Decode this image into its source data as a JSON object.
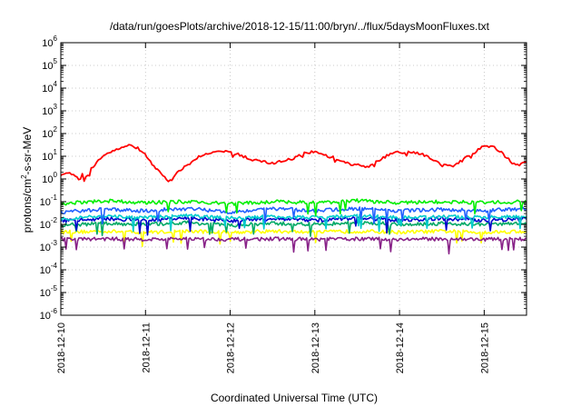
{
  "chart_data": {
    "type": "line",
    "title": "/data/run/goesPlots/archive/2018-12-15/11:00/bryn/../flux/5daysMoonFluxes.txt",
    "xlabel": "Coordinated Universal Time (UTC)",
    "ylabel": "protons/cm²-s-sr-MeV",
    "ylabel_parts": {
      "base": "protons/cm",
      "sup": "2",
      "rest": "-s-sr-MeV"
    },
    "y_scale": "log",
    "ylim": [
      1e-06,
      1000000.0
    ],
    "y_ticks": [
      {
        "exp": -6,
        "base": "10",
        "sup": "-6"
      },
      {
        "exp": -5,
        "base": "10",
        "sup": "-5"
      },
      {
        "exp": -4,
        "base": "10",
        "sup": "-4"
      },
      {
        "exp": -3,
        "base": "10",
        "sup": "-3"
      },
      {
        "exp": -2,
        "base": "10",
        "sup": "-2"
      },
      {
        "exp": -1,
        "base": "10",
        "sup": "-1"
      },
      {
        "exp": 0,
        "base": "10",
        "sup": "0"
      },
      {
        "exp": 1,
        "base": "10",
        "sup": "1"
      },
      {
        "exp": 2,
        "base": "10",
        "sup": "2"
      },
      {
        "exp": 3,
        "base": "10",
        "sup": "3"
      },
      {
        "exp": 4,
        "base": "10",
        "sup": "4"
      },
      {
        "exp": 5,
        "base": "10",
        "sup": "5"
      },
      {
        "exp": 6,
        "base": "10",
        "sup": "6"
      }
    ],
    "xlim": [
      "2018-12-10",
      "2018-12-15T12:00"
    ],
    "x_ticks": [
      "2018-12-10",
      "2018-12-11",
      "2018-12-12",
      "2018-12-13",
      "2018-12-14",
      "2018-12-15"
    ],
    "grid": true,
    "series": [
      {
        "color": "#ff0000",
        "x": [
          "2018-12-10T00:00",
          "2018-12-10T02:00",
          "2018-12-10T04:00",
          "2018-12-10T05:30",
          "2018-12-10T06:00",
          "2018-12-10T06:40",
          "2018-12-10T08:00",
          "2018-12-10T09:00",
          "2018-12-10T12:00",
          "2018-12-10T15:00",
          "2018-12-10T18:00",
          "2018-12-10T20:00",
          "2018-12-10T22:00",
          "2018-12-11T00:00",
          "2018-12-11T02:00",
          "2018-12-11T04:00",
          "2018-12-11T06:00",
          "2018-12-11T07:00",
          "2018-12-11T09:00",
          "2018-12-11T12:00",
          "2018-12-11T15:00",
          "2018-12-11T18:00",
          "2018-12-11T21:00",
          "2018-12-12T00:00",
          "2018-12-12T03:00",
          "2018-12-12T06:00",
          "2018-12-12T09:00",
          "2018-12-12T12:00",
          "2018-12-12T15:00",
          "2018-12-12T18:00",
          "2018-12-12T21:00",
          "2018-12-13T00:00",
          "2018-12-13T03:00",
          "2018-12-13T06:00",
          "2018-12-13T09:00",
          "2018-12-13T12:00",
          "2018-12-13T15:00",
          "2018-12-13T18:00",
          "2018-12-13T21:00",
          "2018-12-14T00:00",
          "2018-12-14T03:00",
          "2018-12-14T06:00",
          "2018-12-14T09:00",
          "2018-12-14T12:00",
          "2018-12-14T15:00",
          "2018-12-14T18:00",
          "2018-12-14T21:00",
          "2018-12-15T00:00",
          "2018-12-15T03:00",
          "2018-12-15T06:00",
          "2018-12-15T08:00",
          "2018-12-15T10:00",
          "2018-12-15T12:00"
        ],
        "values": [
          1.3,
          1.8,
          1.4,
          0.9,
          2.0,
          0.8,
          2.0,
          3.5,
          10,
          18,
          27,
          30,
          22,
          12,
          4,
          2,
          0.9,
          0.8,
          2,
          4,
          9,
          14,
          16,
          15,
          11,
          7,
          6,
          5,
          6,
          8,
          13,
          16,
          11,
          8,
          5,
          4,
          3.5,
          6,
          12,
          15,
          16,
          13,
          8,
          4,
          3.5,
          7,
          14,
          30,
          25,
          10,
          5,
          4,
          6
        ]
      },
      {
        "color": "#00ee00",
        "x": [
          "2018-12-10T00:00",
          "2018-12-10T12:00",
          "2018-12-11T00:00",
          "2018-12-11T12:00",
          "2018-12-12T00:00",
          "2018-12-12T12:00",
          "2018-12-13T00:00",
          "2018-12-13T12:00",
          "2018-12-14T00:00",
          "2018-12-14T12:00",
          "2018-12-15T00:00",
          "2018-12-15T12:00"
        ],
        "values": [
          0.08,
          0.11,
          0.09,
          0.1,
          0.08,
          0.1,
          0.09,
          0.11,
          0.09,
          0.1,
          0.09,
          0.1
        ]
      },
      {
        "color": "#2060ff",
        "x": [
          "2018-12-10T00:00",
          "2018-12-10T12:00",
          "2018-12-11T00:00",
          "2018-12-11T12:00",
          "2018-12-12T00:00",
          "2018-12-12T12:00",
          "2018-12-13T00:00",
          "2018-12-13T12:00",
          "2018-12-14T00:00",
          "2018-12-14T12:00",
          "2018-12-15T00:00",
          "2018-12-15T12:00"
        ],
        "values": [
          0.035,
          0.045,
          0.04,
          0.05,
          0.035,
          0.05,
          0.04,
          0.05,
          0.04,
          0.045,
          0.04,
          0.05
        ]
      },
      {
        "color": "#00cccc",
        "x": [
          "2018-12-10T00:00",
          "2018-12-10T12:00",
          "2018-12-11T00:00",
          "2018-12-11T12:00",
          "2018-12-12T00:00",
          "2018-12-12T12:00",
          "2018-12-13T00:00",
          "2018-12-13T12:00",
          "2018-12-14T00:00",
          "2018-12-14T12:00",
          "2018-12-15T00:00",
          "2018-12-15T12:00"
        ],
        "values": [
          0.018,
          0.022,
          0.02,
          0.024,
          0.019,
          0.022,
          0.02,
          0.024,
          0.02,
          0.022,
          0.02,
          0.022
        ]
      },
      {
        "color": "#0000cc",
        "x": [
          "2018-12-10T00:00",
          "2018-12-10T12:00",
          "2018-12-11T00:00",
          "2018-12-11T12:00",
          "2018-12-12T00:00",
          "2018-12-12T12:00",
          "2018-12-13T00:00",
          "2018-12-13T12:00",
          "2018-12-14T00:00",
          "2018-12-14T12:00",
          "2018-12-15T00:00",
          "2018-12-15T12:00"
        ],
        "values": [
          0.014,
          0.018,
          0.015,
          0.019,
          0.014,
          0.018,
          0.015,
          0.019,
          0.015,
          0.018,
          0.015,
          0.018
        ]
      },
      {
        "color": "#00aa66",
        "x": [
          "2018-12-10T00:00",
          "2018-12-10T12:00",
          "2018-12-11T00:00",
          "2018-12-11T12:00",
          "2018-12-12T00:00",
          "2018-12-12T12:00",
          "2018-12-13T00:00",
          "2018-12-13T12:00",
          "2018-12-14T00:00",
          "2018-12-14T12:00",
          "2018-12-15T00:00",
          "2018-12-15T12:00"
        ],
        "values": [
          0.009,
          0.011,
          0.01,
          0.012,
          0.009,
          0.011,
          0.01,
          0.012,
          0.01,
          0.011,
          0.01,
          0.011
        ]
      },
      {
        "color": "#ffff00",
        "x": [
          "2018-12-10T00:00",
          "2018-12-10T12:00",
          "2018-12-11T00:00",
          "2018-12-11T12:00",
          "2018-12-12T00:00",
          "2018-12-12T12:00",
          "2018-12-13T00:00",
          "2018-12-13T12:00",
          "2018-12-14T00:00",
          "2018-12-14T12:00",
          "2018-12-15T00:00",
          "2018-12-15T12:00"
        ],
        "values": [
          0.0045,
          0.005,
          0.0045,
          0.005,
          0.0045,
          0.005,
          0.0045,
          0.005,
          0.0045,
          0.005,
          0.0045,
          0.005
        ]
      },
      {
        "color": "#882288",
        "x": [
          "2018-12-10T00:00",
          "2018-12-10T12:00",
          "2018-12-11T00:00",
          "2018-12-11T12:00",
          "2018-12-12T00:00",
          "2018-12-12T12:00",
          "2018-12-13T00:00",
          "2018-12-13T12:00",
          "2018-12-14T00:00",
          "2018-12-14T12:00",
          "2018-12-15T00:00",
          "2018-12-15T12:00"
        ],
        "values": [
          0.0022,
          0.0023,
          0.0022,
          0.0023,
          0.0022,
          0.0023,
          0.0022,
          0.0023,
          0.0022,
          0.0023,
          0.0022,
          0.0023
        ]
      }
    ]
  }
}
